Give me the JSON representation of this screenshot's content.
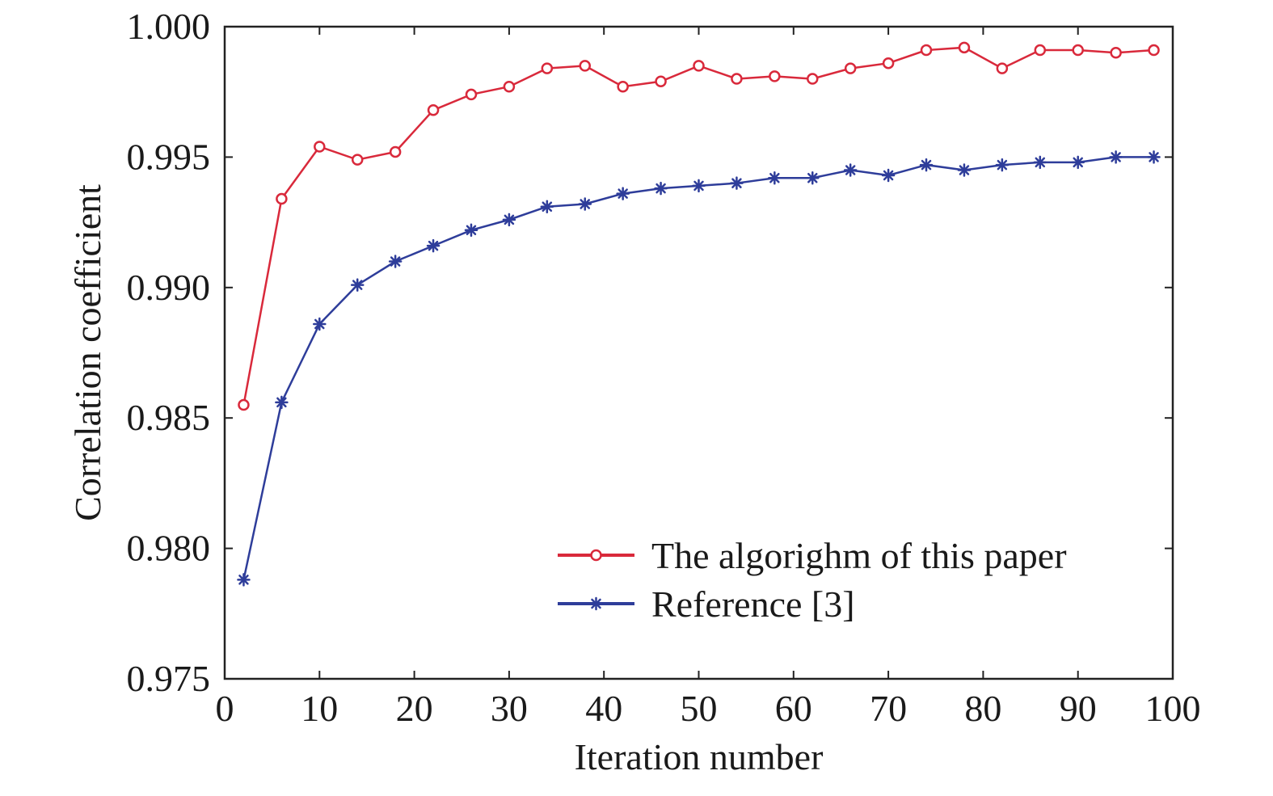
{
  "chart_data": {
    "type": "line",
    "xlabel": "Iteration number",
    "ylabel": "Correlation coefficient",
    "xlim": [
      0,
      100
    ],
    "ylim": [
      0.975,
      1.0
    ],
    "xticks": [
      "0",
      "10",
      "20",
      "30",
      "40",
      "50",
      "60",
      "70",
      "80",
      "90",
      "100"
    ],
    "yticks": [
      "0.975",
      "0.980",
      "0.985",
      "0.990",
      "0.995",
      "1.000"
    ],
    "grid": false,
    "legend_position": "bottom-right",
    "x": [
      2,
      6,
      10,
      14,
      18,
      22,
      26,
      30,
      34,
      38,
      42,
      46,
      50,
      54,
      58,
      62,
      66,
      70,
      74,
      78,
      82,
      86,
      90,
      94,
      98
    ],
    "series": [
      {
        "name": "The algorighm of this paper",
        "color": "#d9293b",
        "marker": "circle",
        "values": [
          0.9855,
          0.9934,
          0.9954,
          0.9949,
          0.9952,
          0.9968,
          0.9974,
          0.9977,
          0.9984,
          0.9985,
          0.9977,
          0.9979,
          0.9985,
          0.998,
          0.9981,
          0.998,
          0.9984,
          0.9986,
          0.9991,
          0.9992,
          0.9984,
          0.9991,
          0.9991,
          0.999,
          0.9991
        ]
      },
      {
        "name": "Reference [3]",
        "color": "#2e3d9a",
        "marker": "asterisk",
        "values": [
          0.9788,
          0.9856,
          0.9886,
          0.9901,
          0.991,
          0.9916,
          0.9922,
          0.9926,
          0.9931,
          0.9932,
          0.9936,
          0.9938,
          0.9939,
          0.994,
          0.9942,
          0.9942,
          0.9945,
          0.9943,
          0.9947,
          0.9945,
          0.9947,
          0.9948,
          0.9948,
          0.995,
          0.995
        ]
      }
    ]
  }
}
